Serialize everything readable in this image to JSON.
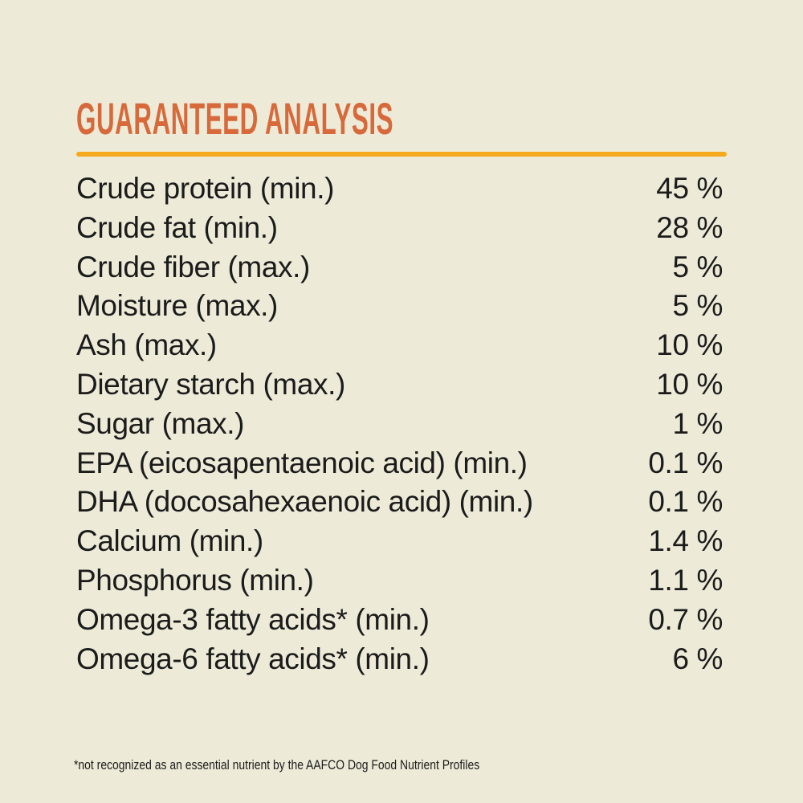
{
  "header": {
    "title": "GUARANTEED ANALYSIS"
  },
  "analysis": {
    "rows": [
      {
        "label": "Crude protein (min.)",
        "value": "45 %"
      },
      {
        "label": "Crude fat (min.)",
        "value": "28 %"
      },
      {
        "label": "Crude fiber (max.)",
        "value": "5 %"
      },
      {
        "label": "Moisture (max.)",
        "value": "5 %"
      },
      {
        "label": "Ash (max.)",
        "value": "10 %"
      },
      {
        "label": "Dietary starch (max.)",
        "value": "10 %"
      },
      {
        "label": "Sugar (max.)",
        "value": "1 %"
      },
      {
        "label": "EPA (eicosapentaenoic acid) (min.)",
        "value": "0.1 %"
      },
      {
        "label": "DHA (docosahexaenoic acid) (min.)",
        "value": "0.1 %"
      },
      {
        "label": "Calcium (min.)",
        "value": "1.4 %"
      },
      {
        "label": "Phosphorus (min.)",
        "value": "1.1 %"
      },
      {
        "label": "Omega-3 fatty acids* (min.)",
        "value": "0.7 %"
      },
      {
        "label": "Omega-6 fatty acids* (min.)",
        "value": "6 %"
      }
    ]
  },
  "footnote": "*not recognized as an essential nutrient by the AAFCO Dog Food Nutrient Profiles",
  "colors": {
    "background": "#EDEBD8",
    "title": "#D7693B",
    "divider": "#F6A91C",
    "text": "#1B1B1B"
  }
}
